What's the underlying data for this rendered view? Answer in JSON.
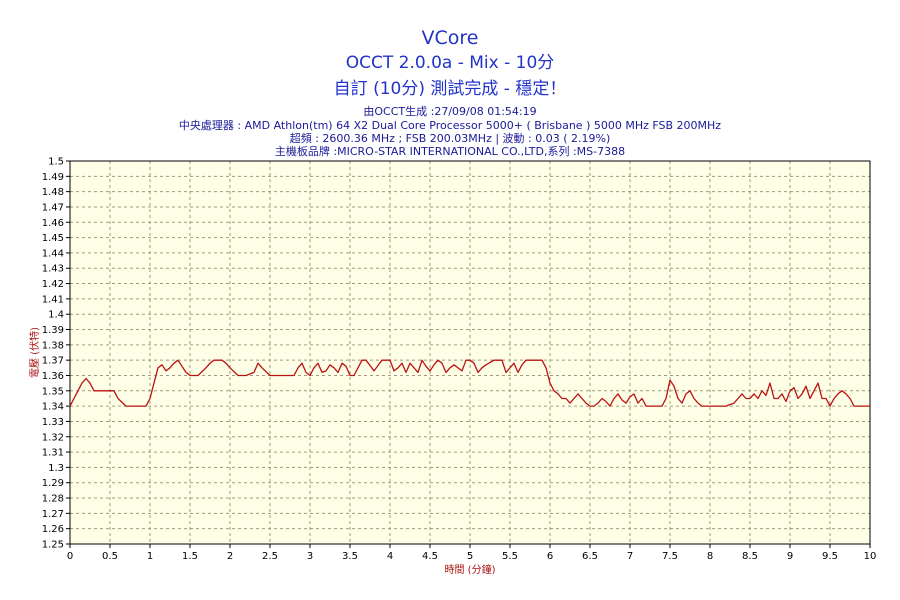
{
  "header": {
    "title": "VCore",
    "subtitle": "OCCT 2.0.0a - Mix - 10分",
    "status": "自訂 (10分) 測試完成 - 穩定！",
    "generated": "由OCCT生成 :27/09/08 01:54:19",
    "cpu": "中央處理器 : AMD Athlon(tm) 64 X2 Dual Core Processor 5000+ ( Brisbane ) 5000 MHz FSB 200MHz",
    "clock": "超頻 : 2600.36 MHz ; FSB 200.03MHz | 波動 : 0.03 ( 2.19%)",
    "motherboard": "主機板品牌 :MICRO-STAR INTERNATIONAL CO.,LTD,系列 :MS-7388"
  },
  "colors": {
    "plot_background": "#ffffe8",
    "grid": "#a09a78",
    "line": "#bb1111",
    "title": "#2233cc",
    "axis_title": "#aa1111"
  },
  "chart_data": {
    "type": "line",
    "xlabel": "時間 (分鐘)",
    "ylabel": "電壓 (伏特)",
    "xlim": [
      0,
      10
    ],
    "ylim": [
      1.25,
      1.5
    ],
    "x_ticks": [
      "0",
      "0.5",
      "1",
      "1.5",
      "2",
      "2.5",
      "3",
      "3.5",
      "4",
      "4.5",
      "5",
      "5.5",
      "6",
      "6.5",
      "7",
      "7.5",
      "8",
      "8.5",
      "9",
      "9.5",
      "10"
    ],
    "y_ticks": [
      "1.25",
      "1.26",
      "1.27",
      "1.28",
      "1.29",
      "1.3",
      "1.31",
      "1.32",
      "1.33",
      "1.34",
      "1.35",
      "1.36",
      "1.37",
      "1.38",
      "1.39",
      "1.4",
      "1.41",
      "1.42",
      "1.43",
      "1.44",
      "1.45",
      "1.46",
      "1.47",
      "1.48",
      "1.49",
      "1.5"
    ],
    "grid": true,
    "series": [
      {
        "x": [
          0,
          0.1,
          0.15,
          0.2,
          0.25,
          0.3,
          0.35,
          0.45,
          0.55,
          0.6,
          0.7,
          0.8,
          0.95,
          1.0,
          1.05,
          1.1,
          1.15,
          1.2,
          1.25,
          1.3,
          1.35,
          1.4,
          1.45,
          1.5,
          1.6,
          1.7,
          1.75,
          1.8,
          1.9,
          1.95,
          2.0,
          2.1,
          2.2,
          2.3,
          2.35,
          2.4,
          2.5,
          2.6,
          2.7,
          2.8,
          2.85,
          2.9,
          2.95,
          3.0,
          3.05,
          3.1,
          3.15,
          3.2,
          3.25,
          3.3,
          3.35,
          3.4,
          3.45,
          3.5,
          3.55,
          3.6,
          3.65,
          3.7,
          3.8,
          3.9,
          3.95,
          4.0,
          4.05,
          4.1,
          4.15,
          4.2,
          4.25,
          4.3,
          4.35,
          4.4,
          4.45,
          4.5,
          4.55,
          4.6,
          4.65,
          4.7,
          4.75,
          4.8,
          4.9,
          4.95,
          5.0,
          5.05,
          5.1,
          5.15,
          5.2,
          5.3,
          5.4,
          5.45,
          5.5,
          5.55,
          5.6,
          5.65,
          5.7,
          5.8,
          5.9,
          5.95,
          6.0,
          6.05,
          6.1,
          6.15,
          6.2,
          6.25,
          6.3,
          6.35,
          6.4,
          6.45,
          6.5,
          6.55,
          6.6,
          6.65,
          6.7,
          6.75,
          6.8,
          6.85,
          6.9,
          6.95,
          7.0,
          7.05,
          7.1,
          7.15,
          7.2,
          7.3,
          7.4,
          7.45,
          7.5,
          7.55,
          7.6,
          7.65,
          7.7,
          7.75,
          7.8,
          7.85,
          7.9,
          7.95,
          8.0,
          8.1,
          8.2,
          8.3,
          8.35,
          8.4,
          8.45,
          8.5,
          8.55,
          8.6,
          8.65,
          8.7,
          8.75,
          8.8,
          8.85,
          8.9,
          8.95,
          9.0,
          9.05,
          9.1,
          9.15,
          9.2,
          9.25,
          9.3,
          9.35,
          9.4,
          9.45,
          9.5,
          9.55,
          9.6,
          9.65,
          9.7,
          9.75,
          9.8,
          9.85,
          9.9,
          9.95,
          10.0
        ],
        "values": [
          1.34,
          1.35,
          1.355,
          1.358,
          1.355,
          1.35,
          1.35,
          1.35,
          1.35,
          1.345,
          1.34,
          1.34,
          1.34,
          1.345,
          1.355,
          1.365,
          1.367,
          1.363,
          1.365,
          1.368,
          1.37,
          1.366,
          1.362,
          1.36,
          1.36,
          1.365,
          1.368,
          1.37,
          1.37,
          1.368,
          1.365,
          1.36,
          1.36,
          1.362,
          1.368,
          1.365,
          1.36,
          1.36,
          1.36,
          1.36,
          1.365,
          1.368,
          1.362,
          1.36,
          1.365,
          1.368,
          1.362,
          1.363,
          1.367,
          1.365,
          1.362,
          1.368,
          1.366,
          1.36,
          1.36,
          1.365,
          1.37,
          1.37,
          1.363,
          1.37,
          1.37,
          1.37,
          1.363,
          1.365,
          1.368,
          1.362,
          1.368,
          1.365,
          1.362,
          1.37,
          1.366,
          1.363,
          1.367,
          1.37,
          1.368,
          1.362,
          1.365,
          1.367,
          1.363,
          1.37,
          1.37,
          1.368,
          1.362,
          1.365,
          1.367,
          1.37,
          1.37,
          1.362,
          1.365,
          1.368,
          1.362,
          1.367,
          1.37,
          1.37,
          1.37,
          1.365,
          1.355,
          1.35,
          1.348,
          1.345,
          1.345,
          1.342,
          1.345,
          1.348,
          1.345,
          1.342,
          1.34,
          1.34,
          1.342,
          1.345,
          1.343,
          1.34,
          1.345,
          1.348,
          1.344,
          1.342,
          1.346,
          1.348,
          1.342,
          1.345,
          1.34,
          1.34,
          1.34,
          1.345,
          1.357,
          1.353,
          1.345,
          1.342,
          1.348,
          1.35,
          1.345,
          1.342,
          1.34,
          1.34,
          1.34,
          1.34,
          1.34,
          1.342,
          1.345,
          1.348,
          1.345,
          1.345,
          1.348,
          1.345,
          1.35,
          1.347,
          1.355,
          1.345,
          1.345,
          1.348,
          1.343,
          1.35,
          1.352,
          1.345,
          1.348,
          1.353,
          1.345,
          1.35,
          1.355,
          1.345,
          1.345,
          1.34,
          1.345,
          1.348,
          1.35,
          1.348,
          1.345,
          1.34,
          1.34,
          1.34,
          1.34,
          1.34
        ]
      }
    ]
  }
}
